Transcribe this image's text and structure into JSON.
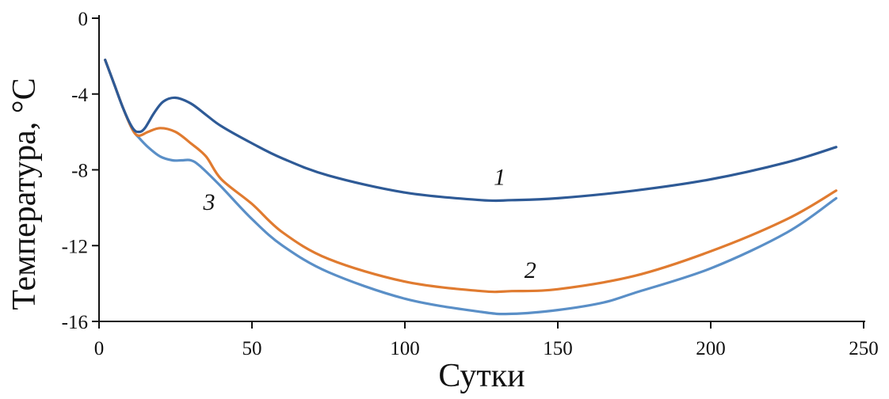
{
  "chart_data": {
    "type": "line",
    "xlabel": "Сутки",
    "ylabel": "Температура, °С",
    "xlim": [
      0,
      250
    ],
    "ylim": [
      -16,
      0
    ],
    "x_ticks": [
      0,
      50,
      100,
      150,
      200,
      250
    ],
    "y_ticks": [
      0,
      -4,
      -8,
      -12,
      -16
    ],
    "grid": false,
    "series": [
      {
        "name": "1",
        "color": "#2e5a96",
        "x": [
          2,
          5,
          8,
          11,
          13,
          15,
          18,
          21,
          25,
          30,
          35,
          40,
          50,
          60,
          75,
          100,
          125,
          135,
          150,
          175,
          200,
          225,
          241
        ],
        "y": [
          -2.2,
          -3.5,
          -4.8,
          -5.8,
          -6.0,
          -5.8,
          -5.0,
          -4.4,
          -4.2,
          -4.5,
          -5.1,
          -5.7,
          -6.6,
          -7.4,
          -8.3,
          -9.2,
          -9.6,
          -9.6,
          -9.5,
          -9.1,
          -8.5,
          -7.6,
          -6.8
        ]
      },
      {
        "name": "2",
        "color": "#e07b30",
        "x": [
          2,
          5,
          8,
          11,
          13,
          16,
          20,
          25,
          30,
          35,
          40,
          50,
          60,
          75,
          100,
          125,
          135,
          150,
          175,
          200,
          225,
          241
        ],
        "y": [
          -2.2,
          -3.5,
          -4.8,
          -5.9,
          -6.2,
          -6.0,
          -5.8,
          -6.0,
          -6.6,
          -7.3,
          -8.5,
          -9.8,
          -11.3,
          -12.7,
          -13.9,
          -14.4,
          -14.4,
          -14.3,
          -13.6,
          -12.3,
          -10.6,
          -9.1
        ]
      },
      {
        "name": "3",
        "color": "#5a8fc7",
        "x": [
          2,
          5,
          8,
          11,
          13,
          16,
          20,
          24,
          27,
          30,
          33,
          40,
          50,
          60,
          75,
          100,
          125,
          135,
          150,
          165,
          175,
          200,
          225,
          241
        ],
        "y": [
          -2.2,
          -3.5,
          -4.8,
          -5.9,
          -6.3,
          -6.8,
          -7.3,
          -7.5,
          -7.5,
          -7.5,
          -7.8,
          -8.9,
          -10.6,
          -12.0,
          -13.4,
          -14.8,
          -15.5,
          -15.6,
          -15.4,
          -15.0,
          -14.5,
          -13.2,
          -11.3,
          -9.5
        ]
      }
    ],
    "annotations": [
      {
        "text": "1",
        "x": 131,
        "y": -8.8
      },
      {
        "text": "2",
        "x": 141,
        "y": -13.7
      },
      {
        "text": "3",
        "x": 36,
        "y": -10.1
      }
    ]
  }
}
